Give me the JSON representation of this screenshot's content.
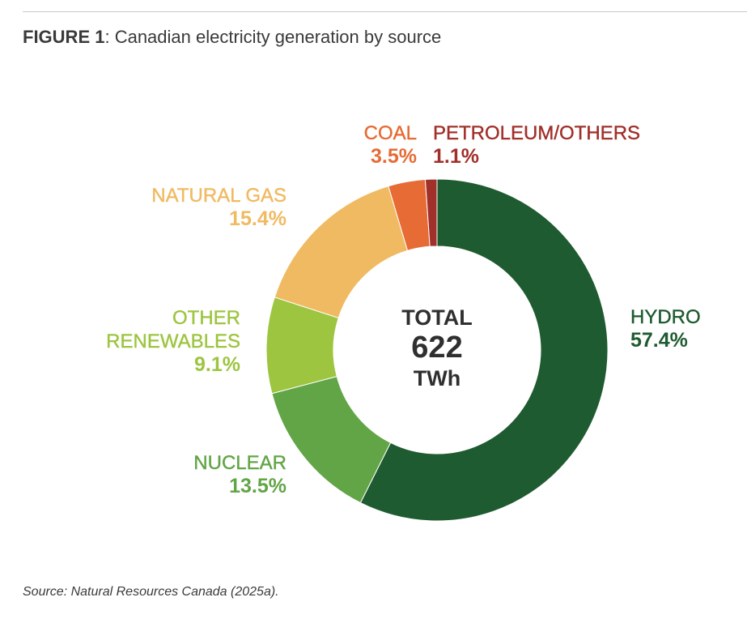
{
  "figure": {
    "label": "FIGURE 1",
    "title": ": Canadian electricity generation by source"
  },
  "chart_data": {
    "type": "pie",
    "style": "donut",
    "center": {
      "line1": "TOTAL",
      "line2": "622",
      "line3": "TWh"
    },
    "slices": [
      {
        "name": "HYDRO",
        "value": 57.4,
        "label": "57.4%",
        "color": "#1f5b30"
      },
      {
        "name": "NUCLEAR",
        "value": 13.5,
        "label": "13.5%",
        "color": "#62a547"
      },
      {
        "name": "OTHER RENEWABLES",
        "name_lines": [
          "OTHER",
          "RENEWABLES"
        ],
        "value": 9.1,
        "label": "9.1%",
        "color": "#9dc540"
      },
      {
        "name": "NATURAL GAS",
        "value": 15.4,
        "label": "15.4%",
        "color": "#f0ba62"
      },
      {
        "name": "COAL",
        "value": 3.5,
        "label": "3.5%",
        "color": "#e66b35"
      },
      {
        "name": "PETROLEUM/OTHERS",
        "value": 1.1,
        "label": "1.1%",
        "color": "#a1302a"
      }
    ]
  },
  "source": "Source: Natural Resources Canada (2025a)."
}
